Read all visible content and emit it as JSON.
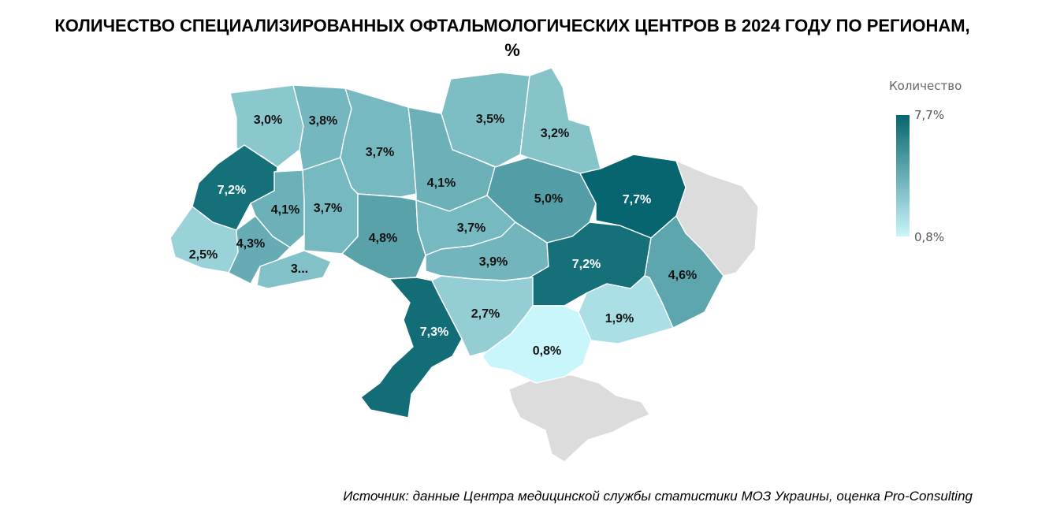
{
  "title": "КОЛИЧЕСТВО СПЕЦИАЛИЗИРОВАННЫХ ОФТАЛЬМОЛОГИЧЕСКИХ ЦЕНТРОВ В 2024 ГОДУ ПО РЕГИОНАМ, %",
  "legend": {
    "title": "Количество",
    "max_label": "7,7%",
    "min_label": "0,8%",
    "max": 7.7,
    "min": 0.8
  },
  "colors": {
    "max": "#07656f",
    "min": "#c9f6fb",
    "no_data": "#dcdcdc",
    "label_dark": "#111111",
    "label_light": "#ffffff"
  },
  "source": "Источник: данные Центра медицинской службы статистики МОЗ Украины, оценка Pro-Consulting",
  "regions": [
    {
      "id": "volyn",
      "value": 3.0,
      "label": "3,0%"
    },
    {
      "id": "rivne",
      "value": 3.8,
      "label": "3,8%"
    },
    {
      "id": "zhytomyr",
      "value": 3.7,
      "label": "3,7%"
    },
    {
      "id": "kyiv",
      "value": 4.1,
      "label": "4,1%"
    },
    {
      "id": "chernihiv",
      "value": 3.5,
      "label": "3,5%"
    },
    {
      "id": "sumy",
      "value": 3.2,
      "label": "3,2%"
    },
    {
      "id": "lviv",
      "value": 7.2,
      "label": "7,2%"
    },
    {
      "id": "ternopil",
      "value": 4.1,
      "label": "4,1%"
    },
    {
      "id": "khmelnytskyi",
      "value": 3.7,
      "label": "3,7%"
    },
    {
      "id": "poltava",
      "value": 5.0,
      "label": "5,0%"
    },
    {
      "id": "kharkiv",
      "value": 7.7,
      "label": "7,7%"
    },
    {
      "id": "zakarpattia",
      "value": 2.5,
      "label": "2,5%"
    },
    {
      "id": "ivano_frankivsk",
      "value": 4.3,
      "label": "4,3%"
    },
    {
      "id": "chernivtsi",
      "label": "3..."
    },
    {
      "id": "vinnytsia",
      "value": 4.8,
      "label": "4,8%"
    },
    {
      "id": "cherkasy",
      "value": 3.7,
      "label": "3,7%"
    },
    {
      "id": "kirovohrad",
      "value": 3.9,
      "label": "3,9%"
    },
    {
      "id": "dnipro",
      "value": 7.2,
      "label": "7,2%"
    },
    {
      "id": "luhansk",
      "value": 4.6,
      "label": "4,6%"
    },
    {
      "id": "donetsk",
      "value": 1.9,
      "label": "1,9%"
    },
    {
      "id": "odesa",
      "value": 7.3,
      "label": "7,3%"
    },
    {
      "id": "mykolaiv",
      "value": 2.7,
      "label": "2,7%"
    },
    {
      "id": "kherson",
      "value": 0.8,
      "label": "0,8%"
    }
  ]
}
